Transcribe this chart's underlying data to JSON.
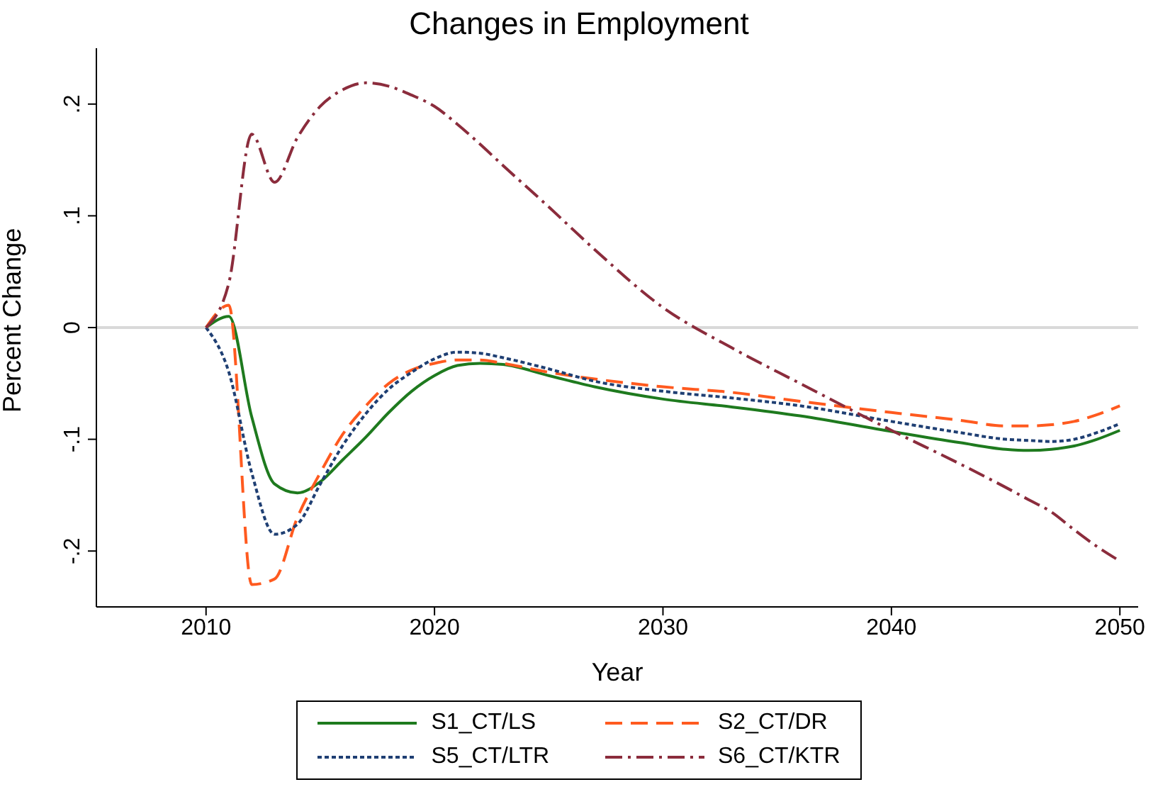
{
  "chart_data": {
    "type": "line",
    "title": "Changes in Employment",
    "xlabel": "Year",
    "ylabel": "Percent Change",
    "x": [
      2010,
      2011,
      2012,
      2013,
      2014,
      2015,
      2016,
      2017,
      2018,
      2019,
      2020,
      2021,
      2022,
      2023,
      2025,
      2027,
      2030,
      2033,
      2036,
      2040,
      2043,
      2045,
      2046,
      2047,
      2048,
      2049,
      2050
    ],
    "series": [
      {
        "name": "S1_CT/LS",
        "color": "#1e7a1e",
        "line_style": "solid",
        "values": [
          0,
          0.01,
          -0.08,
          -0.14,
          -0.148,
          -0.138,
          -0.118,
          -0.098,
          -0.076,
          -0.057,
          -0.043,
          -0.034,
          -0.032,
          -0.033,
          -0.043,
          -0.053,
          -0.064,
          -0.071,
          -0.079,
          -0.093,
          -0.103,
          -0.109,
          -0.11,
          -0.109,
          -0.106,
          -0.1,
          -0.092
        ]
      },
      {
        "name": "S2_CT/DR",
        "color": "#ff5a1f",
        "line_style": "dashed",
        "values": [
          0,
          0.02,
          -0.23,
          -0.225,
          -0.17,
          -0.13,
          -0.095,
          -0.07,
          -0.05,
          -0.038,
          -0.032,
          -0.029,
          -0.029,
          -0.032,
          -0.04,
          -0.046,
          -0.053,
          -0.058,
          -0.066,
          -0.076,
          -0.083,
          -0.088,
          -0.088,
          -0.087,
          -0.084,
          -0.078,
          -0.07
        ]
      },
      {
        "name": "S5_CT/LTR",
        "color": "#1f3f73",
        "line_style": "dotted",
        "values": [
          0,
          -0.04,
          -0.13,
          -0.185,
          -0.176,
          -0.14,
          -0.105,
          -0.077,
          -0.055,
          -0.04,
          -0.028,
          -0.022,
          -0.023,
          -0.027,
          -0.037,
          -0.048,
          -0.057,
          -0.063,
          -0.07,
          -0.084,
          -0.094,
          -0.1,
          -0.101,
          -0.102,
          -0.1,
          -0.094,
          -0.086
        ]
      },
      {
        "name": "S6_CT/KTR",
        "color": "#8b2c3c",
        "line_style": "dashdot",
        "values": [
          0,
          0.04,
          0.173,
          0.13,
          0.17,
          0.198,
          0.213,
          0.219,
          0.216,
          0.208,
          0.198,
          0.182,
          0.164,
          0.145,
          0.108,
          0.07,
          0.018,
          -0.018,
          -0.05,
          -0.092,
          -0.122,
          -0.143,
          -0.154,
          -0.165,
          -0.181,
          -0.196,
          -0.209
        ]
      }
    ],
    "xlim": [
      2005.2,
      2050.8
    ],
    "xticks": [
      2010,
      2020,
      2030,
      2040,
      2050
    ],
    "ylim": [
      -0.25,
      0.25
    ],
    "yticks": [
      {
        "value": -0.2,
        "label": "-.2"
      },
      {
        "value": -0.1,
        "label": "-.1"
      },
      0,
      {
        "value": 0.1,
        "label": ".1"
      },
      {
        "value": 0.2,
        "label": ".2"
      }
    ],
    "ref_lines": [
      {
        "axis": "y",
        "value": 0,
        "color": "#d9d9d9"
      }
    ],
    "grid": false,
    "legend": "bottom"
  }
}
